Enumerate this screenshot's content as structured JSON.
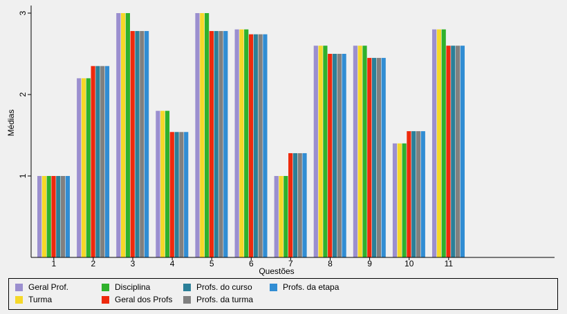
{
  "chart_data": {
    "type": "bar",
    "title": "",
    "xlabel": "Questões",
    "ylabel": "Médias",
    "categories": [
      "1",
      "2",
      "3",
      "4",
      "5",
      "6",
      "7",
      "8",
      "9",
      "10",
      "11"
    ],
    "yticks": [
      "1",
      "2",
      "3"
    ],
    "ylim": [
      0,
      3.1
    ],
    "grid": false,
    "legend_position": "bottom",
    "series": [
      {
        "name": "Geral Prof.",
        "color": "#9b8fcf",
        "values": [
          1.0,
          2.2,
          3.0,
          1.8,
          3.0,
          2.8,
          1.0,
          2.6,
          2.6,
          1.4,
          2.8
        ]
      },
      {
        "name": "Turma",
        "color": "#f5d829",
        "values": [
          1.0,
          2.2,
          3.0,
          1.8,
          3.0,
          2.8,
          1.0,
          2.6,
          2.6,
          1.4,
          2.8
        ]
      },
      {
        "name": "Disciplina",
        "color": "#2fb12c",
        "values": [
          1.0,
          2.2,
          3.0,
          1.8,
          3.0,
          2.8,
          1.0,
          2.6,
          2.6,
          1.4,
          2.8
        ]
      },
      {
        "name": "Geral dos Profs",
        "color": "#ee2a0d",
        "values": [
          1.0,
          2.35,
          2.78,
          1.54,
          2.78,
          2.74,
          1.28,
          2.5,
          2.45,
          1.55,
          2.6
        ]
      },
      {
        "name": "Profs. do curso",
        "color": "#2b7f98",
        "values": [
          1.0,
          2.35,
          2.78,
          1.54,
          2.78,
          2.74,
          1.28,
          2.5,
          2.45,
          1.55,
          2.6
        ]
      },
      {
        "name": "Profs. da turma",
        "color": "#808080",
        "values": [
          1.0,
          2.35,
          2.78,
          1.54,
          2.78,
          2.74,
          1.28,
          2.5,
          2.45,
          1.55,
          2.6
        ]
      },
      {
        "name": "Profs. da etapa",
        "color": "#318dd3",
        "values": [
          1.0,
          2.35,
          2.78,
          1.54,
          2.78,
          2.74,
          1.28,
          2.5,
          2.45,
          1.55,
          2.6
        ]
      }
    ]
  }
}
